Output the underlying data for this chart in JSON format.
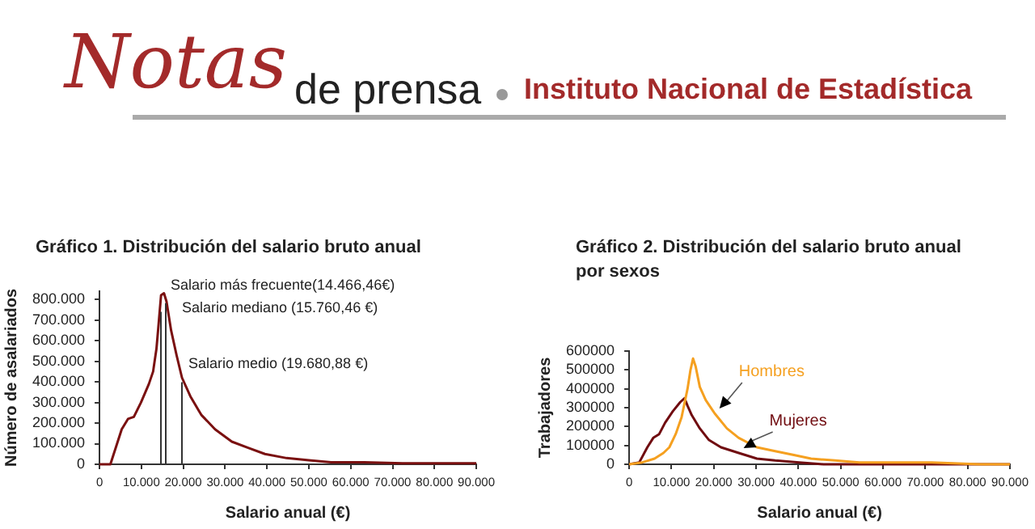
{
  "chart_data": [
    {
      "type": "line",
      "title": "Gráfico 1. Distribución del salario bruto anual",
      "xlabel": "Salario anual (€)",
      "ylabel": "Número de asalariados",
      "annotations": [
        "Notas",
        "de prensa",
        "Instituto Nacional de Estadística"
      ],
      "series": [
        {
          "color": "#7a1010",
          "x": [
            0,
            2600,
            5300,
            6800,
            8200,
            9900,
            11800,
            12800,
            13600,
            14200,
            14700,
            15400,
            16000,
            17100,
            18400,
            19700,
            21700,
            24300,
            27600,
            31600,
            35500,
            39500,
            44700,
            50000,
            55300,
            63200,
            72400,
            81600,
            90000
          ],
          "values": [
            0,
            0,
            170000,
            220000,
            230000,
            300000,
            390000,
            450000,
            560000,
            700000,
            820000,
            830000,
            790000,
            650000,
            530000,
            420000,
            330000,
            240000,
            170000,
            110000,
            80000,
            50000,
            30000,
            20000,
            10000,
            10000,
            5000,
            5000,
            5000
          ]
        }
      ],
      "ref_lines": [
        {
          "axis": "x",
          "value": 14466.46,
          "label": "Salario más frecuente(14.466,46€)",
          "color": "#333333"
        },
        {
          "axis": "x",
          "value": 15760.46,
          "label": "Salario mediano (15.760,46 €)",
          "color": "#333333"
        },
        {
          "axis": "x",
          "value": 19680.88,
          "label": "Salario medio (19.680,88 €)",
          "color": "#333333"
        }
      ],
      "xlim": [
        0,
        90000
      ],
      "xticks": [
        {
          "value": 0,
          "label": "0"
        },
        {
          "value": 10000,
          "label": "10.000"
        },
        {
          "value": 20000,
          "label": "20.000"
        },
        {
          "value": 30000,
          "label": "30.000"
        },
        {
          "value": 40000,
          "label": "40.000"
        },
        {
          "value": 50000,
          "label": "50.000"
        },
        {
          "value": 60000,
          "label": "60.000"
        },
        {
          "value": 70000,
          "label": "70.000"
        },
        {
          "value": 80000,
          "label": "80.000"
        },
        {
          "value": 90000,
          "label": "90.000"
        }
      ],
      "ylim": [
        0,
        840000
      ],
      "yticks": [
        {
          "value": 0,
          "label": "0"
        },
        {
          "value": 100000,
          "label": "100.000"
        },
        {
          "value": 200000,
          "label": "200.000"
        },
        {
          "value": 300000,
          "label": "300.000"
        },
        {
          "value": 400000,
          "label": "400.000"
        },
        {
          "value": 500000,
          "label": "500.000"
        },
        {
          "value": 600000,
          "label": "600.000"
        },
        {
          "value": 700000,
          "label": "700.000"
        },
        {
          "value": 800000,
          "label": "800.000"
        }
      ],
      "grid": false,
      "legend": false,
      "marker": "none"
    },
    {
      "type": "line",
      "title": "Gráfico 2. Distribución del salario bruto anual por sexos",
      "xlabel": "Salario anual (€)",
      "ylabel": "Trabajadores",
      "series": [
        {
          "name": "Hombres",
          "color": "#f5a020",
          "x": [
            0,
            3100,
            6000,
            8100,
            9500,
            11000,
            12400,
            13800,
            14500,
            15100,
            15700,
            16700,
            18100,
            20200,
            23100,
            25900,
            30200,
            34500,
            38700,
            43000,
            48700,
            54400,
            61500,
            71500,
            82900,
            90000
          ],
          "values": [
            0,
            10000,
            30000,
            60000,
            90000,
            160000,
            250000,
            400000,
            500000,
            560000,
            520000,
            410000,
            340000,
            270000,
            190000,
            140000,
            90000,
            70000,
            50000,
            30000,
            20000,
            10000,
            10000,
            10000,
            0,
            0
          ]
        },
        {
          "name": "Mujeres",
          "color": "#700c10",
          "x": [
            0,
            2400,
            4300,
            5700,
            7100,
            8500,
            10300,
            12100,
            13100,
            13800,
            14800,
            16700,
            18800,
            21700,
            25900,
            30200,
            34500,
            40200,
            45900,
            54400,
            90000
          ],
          "values": [
            0,
            10000,
            90000,
            140000,
            160000,
            220000,
            280000,
            330000,
            350000,
            310000,
            260000,
            190000,
            130000,
            90000,
            60000,
            30000,
            20000,
            10000,
            0,
            0,
            0
          ]
        }
      ],
      "xlim": [
        0,
        90000
      ],
      "xticks": [
        {
          "value": 0,
          "label": "0"
        },
        {
          "value": 10000,
          "label": "10.000"
        },
        {
          "value": 20000,
          "label": "20.000"
        },
        {
          "value": 30000,
          "label": "30.000"
        },
        {
          "value": 40000,
          "label": "40.000"
        },
        {
          "value": 50000,
          "label": "50.000"
        },
        {
          "value": 60000,
          "label": "60.000"
        },
        {
          "value": 70000,
          "label": "70.000"
        },
        {
          "value": 80000,
          "label": "80.000"
        },
        {
          "value": 90000,
          "label": "90.000"
        }
      ],
      "ylim": [
        0,
        600000
      ],
      "yticks": [
        0,
        100000,
        200000,
        300000,
        400000,
        500000,
        600000
      ],
      "grid": false,
      "legend": false,
      "marker": "none"
    }
  ]
}
